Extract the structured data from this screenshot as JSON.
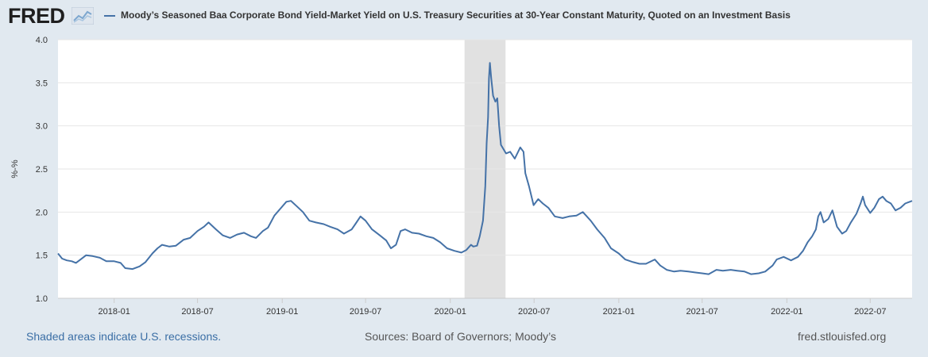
{
  "header": {
    "logo_text": "FRED",
    "logo_icon": "fred-chart-icon",
    "series_title": "Moody’s Seasoned Baa Corporate Bond Yield-Market Yield on U.S. Treasury Securities at 30-Year Constant Maturity, Quoted on an Investment Basis"
  },
  "footer": {
    "recession_note": "Shaded areas indicate U.S. recessions.",
    "sources": "Sources: Board of Governors; Moody’s",
    "site": "fred.stlouisfed.org"
  },
  "colors": {
    "series": "#4572a7",
    "recession": "#e1e1e1",
    "background": "#e1e9f0",
    "plot_bg": "#ffffff",
    "grid": "#e6e6e6"
  },
  "chart_data": {
    "type": "line",
    "title": "Moody’s Seasoned Baa Corporate Bond Yield-Market Yield on U.S. Treasury Securities at 30-Year Constant Maturity, Quoted on an Investment Basis",
    "ylabel": "%-%",
    "xlabel": "",
    "ylim": [
      1.0,
      4.0
    ],
    "xlim": [
      "2017-09-01",
      "2022-09-30"
    ],
    "y_ticks": [
      "1.0",
      "1.5",
      "2.0",
      "2.5",
      "3.0",
      "3.5",
      "4.0"
    ],
    "x_ticks": [
      "2018-01",
      "2018-07",
      "2019-01",
      "2019-07",
      "2020-01",
      "2020-07",
      "2021-01",
      "2021-07",
      "2022-01",
      "2022-07"
    ],
    "grid": true,
    "legend": "top-left",
    "recessions": [
      [
        "2020-02-01",
        "2020-04-30"
      ]
    ],
    "series": [
      {
        "name": "Moody’s Seasoned Baa Corporate Bond Yield-Market Yield on U.S. Treasury Securities at 30-Year Constant Maturity, Quoted on an Investment Basis",
        "points": [
          [
            "2017-09-01",
            1.52
          ],
          [
            "2017-09-10",
            1.46
          ],
          [
            "2017-09-20",
            1.44
          ],
          [
            "2017-10-01",
            1.43
          ],
          [
            "2017-10-10",
            1.41
          ],
          [
            "2017-10-20",
            1.45
          ],
          [
            "2017-11-01",
            1.5
          ],
          [
            "2017-11-15",
            1.49
          ],
          [
            "2017-12-01",
            1.47
          ],
          [
            "2017-12-15",
            1.43
          ],
          [
            "2018-01-01",
            1.43
          ],
          [
            "2018-01-15",
            1.41
          ],
          [
            "2018-01-25",
            1.35
          ],
          [
            "2018-02-10",
            1.34
          ],
          [
            "2018-02-25",
            1.37
          ],
          [
            "2018-03-10",
            1.42
          ],
          [
            "2018-03-25",
            1.52
          ],
          [
            "2018-04-05",
            1.58
          ],
          [
            "2018-04-15",
            1.62
          ],
          [
            "2018-05-01",
            1.6
          ],
          [
            "2018-05-15",
            1.61
          ],
          [
            "2018-06-01",
            1.68
          ],
          [
            "2018-06-15",
            1.7
          ],
          [
            "2018-07-01",
            1.78
          ],
          [
            "2018-07-15",
            1.83
          ],
          [
            "2018-07-25",
            1.88
          ],
          [
            "2018-08-10",
            1.8
          ],
          [
            "2018-08-25",
            1.73
          ],
          [
            "2018-09-10",
            1.7
          ],
          [
            "2018-09-25",
            1.74
          ],
          [
            "2018-10-10",
            1.76
          ],
          [
            "2018-10-25",
            1.72
          ],
          [
            "2018-11-05",
            1.7
          ],
          [
            "2018-11-20",
            1.78
          ],
          [
            "2018-12-01",
            1.82
          ],
          [
            "2018-12-15",
            1.96
          ],
          [
            "2018-12-28",
            2.04
          ],
          [
            "2019-01-10",
            2.12
          ],
          [
            "2019-01-20",
            2.13
          ],
          [
            "2019-02-01",
            2.07
          ],
          [
            "2019-02-15",
            2.0
          ],
          [
            "2019-03-01",
            1.9
          ],
          [
            "2019-03-15",
            1.88
          ],
          [
            "2019-04-01",
            1.86
          ],
          [
            "2019-04-15",
            1.83
          ],
          [
            "2019-05-01",
            1.8
          ],
          [
            "2019-05-15",
            1.75
          ],
          [
            "2019-06-01",
            1.8
          ],
          [
            "2019-06-10",
            1.87
          ],
          [
            "2019-06-20",
            1.95
          ],
          [
            "2019-07-01",
            1.9
          ],
          [
            "2019-07-15",
            1.8
          ],
          [
            "2019-08-01",
            1.73
          ],
          [
            "2019-08-15",
            1.67
          ],
          [
            "2019-08-25",
            1.58
          ],
          [
            "2019-09-05",
            1.62
          ],
          [
            "2019-09-15",
            1.78
          ],
          [
            "2019-09-25",
            1.8
          ],
          [
            "2019-10-10",
            1.76
          ],
          [
            "2019-10-25",
            1.75
          ],
          [
            "2019-11-10",
            1.72
          ],
          [
            "2019-11-25",
            1.7
          ],
          [
            "2019-12-10",
            1.65
          ],
          [
            "2019-12-25",
            1.58
          ],
          [
            "2020-01-10",
            1.55
          ],
          [
            "2020-01-25",
            1.53
          ],
          [
            "2020-02-05",
            1.56
          ],
          [
            "2020-02-15",
            1.62
          ],
          [
            "2020-02-20",
            1.6
          ],
          [
            "2020-02-28",
            1.61
          ],
          [
            "2020-03-05",
            1.72
          ],
          [
            "2020-03-12",
            1.9
          ],
          [
            "2020-03-17",
            2.3
          ],
          [
            "2020-03-20",
            2.8
          ],
          [
            "2020-03-23",
            3.1
          ],
          [
            "2020-03-25",
            3.55
          ],
          [
            "2020-03-27",
            3.73
          ],
          [
            "2020-03-30",
            3.55
          ],
          [
            "2020-04-03",
            3.35
          ],
          [
            "2020-04-08",
            3.28
          ],
          [
            "2020-04-12",
            3.32
          ],
          [
            "2020-04-16",
            3.0
          ],
          [
            "2020-04-20",
            2.78
          ],
          [
            "2020-05-01",
            2.68
          ],
          [
            "2020-05-10",
            2.7
          ],
          [
            "2020-05-20",
            2.62
          ],
          [
            "2020-06-01",
            2.75
          ],
          [
            "2020-06-08",
            2.7
          ],
          [
            "2020-06-12",
            2.45
          ],
          [
            "2020-06-20",
            2.3
          ],
          [
            "2020-06-30",
            2.08
          ],
          [
            "2020-07-10",
            2.15
          ],
          [
            "2020-07-20",
            2.1
          ],
          [
            "2020-08-01",
            2.05
          ],
          [
            "2020-08-15",
            1.95
          ],
          [
            "2020-09-01",
            1.93
          ],
          [
            "2020-09-15",
            1.95
          ],
          [
            "2020-10-01",
            1.96
          ],
          [
            "2020-10-15",
            2.0
          ],
          [
            "2020-11-01",
            1.9
          ],
          [
            "2020-11-15",
            1.8
          ],
          [
            "2020-12-01",
            1.7
          ],
          [
            "2020-12-15",
            1.58
          ],
          [
            "2021-01-01",
            1.52
          ],
          [
            "2021-01-15",
            1.45
          ],
          [
            "2021-02-01",
            1.42
          ],
          [
            "2021-02-15",
            1.4
          ],
          [
            "2021-03-01",
            1.4
          ],
          [
            "2021-03-20",
            1.45
          ],
          [
            "2021-04-01",
            1.38
          ],
          [
            "2021-04-15",
            1.33
          ],
          [
            "2021-05-01",
            1.31
          ],
          [
            "2021-05-15",
            1.32
          ],
          [
            "2021-06-01",
            1.31
          ],
          [
            "2021-06-15",
            1.3
          ],
          [
            "2021-07-01",
            1.29
          ],
          [
            "2021-07-15",
            1.28
          ],
          [
            "2021-08-01",
            1.33
          ],
          [
            "2021-08-15",
            1.32
          ],
          [
            "2021-09-01",
            1.33
          ],
          [
            "2021-09-15",
            1.32
          ],
          [
            "2021-10-01",
            1.31
          ],
          [
            "2021-10-15",
            1.28
          ],
          [
            "2021-11-01",
            1.29
          ],
          [
            "2021-11-15",
            1.31
          ],
          [
            "2021-12-01",
            1.38
          ],
          [
            "2021-12-10",
            1.45
          ],
          [
            "2021-12-25",
            1.48
          ],
          [
            "2022-01-10",
            1.44
          ],
          [
            "2022-01-25",
            1.48
          ],
          [
            "2022-02-05",
            1.55
          ],
          [
            "2022-02-15",
            1.65
          ],
          [
            "2022-02-25",
            1.72
          ],
          [
            "2022-03-05",
            1.8
          ],
          [
            "2022-03-10",
            1.95
          ],
          [
            "2022-03-15",
            2.0
          ],
          [
            "2022-03-22",
            1.88
          ],
          [
            "2022-04-01",
            1.92
          ],
          [
            "2022-04-10",
            2.02
          ],
          [
            "2022-04-20",
            1.83
          ],
          [
            "2022-05-01",
            1.75
          ],
          [
            "2022-05-10",
            1.78
          ],
          [
            "2022-05-20",
            1.88
          ],
          [
            "2022-06-01",
            1.98
          ],
          [
            "2022-06-10",
            2.1
          ],
          [
            "2022-06-15",
            2.18
          ],
          [
            "2022-06-20",
            2.08
          ],
          [
            "2022-07-01",
            1.99
          ],
          [
            "2022-07-10",
            2.05
          ],
          [
            "2022-07-20",
            2.15
          ],
          [
            "2022-07-28",
            2.18
          ],
          [
            "2022-08-05",
            2.13
          ],
          [
            "2022-08-15",
            2.1
          ],
          [
            "2022-08-25",
            2.02
          ],
          [
            "2022-09-05",
            2.05
          ],
          [
            "2022-09-15",
            2.1
          ],
          [
            "2022-09-25",
            2.12
          ],
          [
            "2022-09-30",
            2.13
          ]
        ]
      }
    ]
  }
}
